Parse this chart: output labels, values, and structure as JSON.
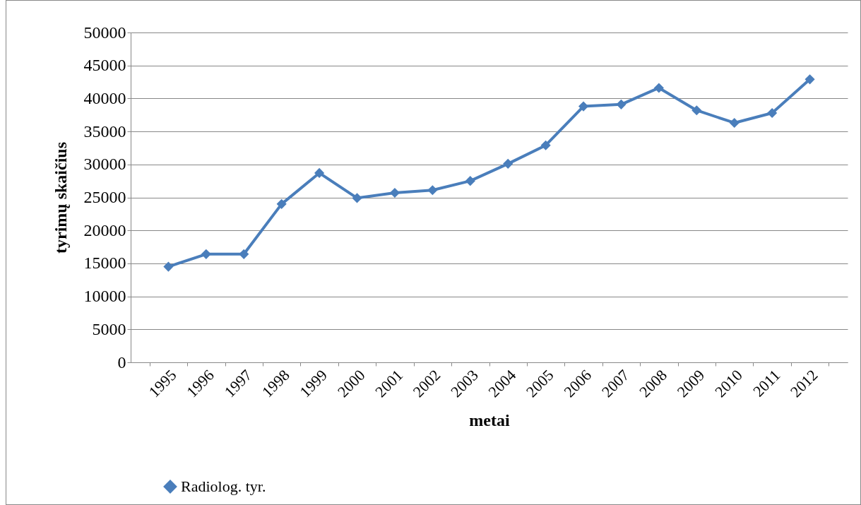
{
  "chart_data": {
    "type": "line",
    "xlabel": "metai",
    "ylabel": "tyrimų skaičius",
    "categories": [
      "1995",
      "1996",
      "1997",
      "1998",
      "1999",
      "2000",
      "2001",
      "2002",
      "2003",
      "2004",
      "2005",
      "2006",
      "2007",
      "2008",
      "2009",
      "2010",
      "2011",
      "2012"
    ],
    "series": [
      {
        "name": "Radiolog. tyr.",
        "color": "#4a7ebb",
        "values": [
          14500,
          16400,
          16400,
          24000,
          28700,
          24900,
          25700,
          26100,
          27500,
          30100,
          32900,
          38800,
          39100,
          41600,
          38200,
          36300,
          37800,
          42900
        ]
      }
    ],
    "ylim": [
      0,
      50000
    ],
    "yticks": [
      0,
      5000,
      10000,
      15000,
      20000,
      25000,
      30000,
      35000,
      40000,
      45000,
      50000
    ],
    "grid": "y",
    "legend": "bottom left",
    "marker": "diamond",
    "line_style": "solid"
  }
}
